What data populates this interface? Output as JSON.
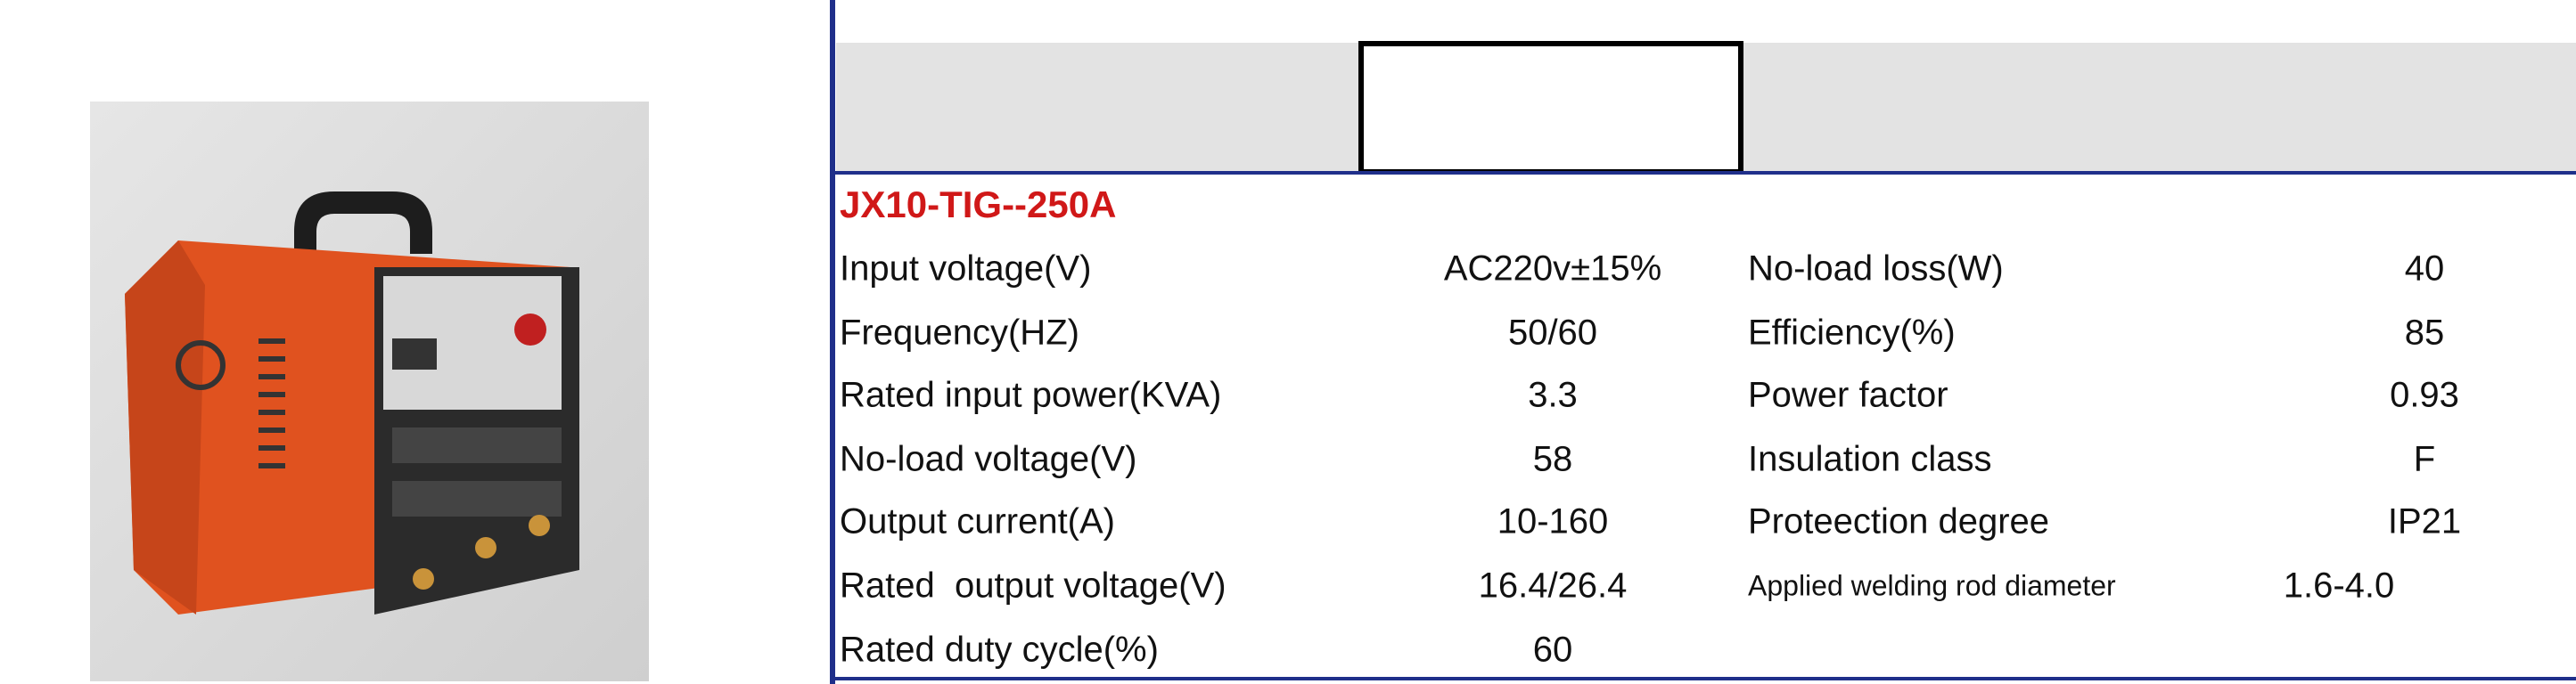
{
  "title": "JX10-TIG--250A",
  "table": {
    "rows": [
      [
        "Input voltage(V)",
        "AC220v±15%",
        "No-load loss(W)",
        "40"
      ],
      [
        "Frequency(HZ)",
        "50/60",
        "Efficiency(%)",
        "85"
      ],
      [
        "Rated input power(KVA)",
        "3.3",
        "Power factor",
        "0.93"
      ],
      [
        "No-load voltage(V)",
        "58",
        "Insulation class",
        "F"
      ],
      [
        "Output current(A)",
        "10-160",
        "Proteection degree",
        "IP21"
      ],
      [
        "Rated  output voltage(V)",
        "16.4/26.4",
        "Applied welding rod diameter",
        "1.6-4.0"
      ],
      [
        "Rated duty cycle(%)",
        "60"
      ]
    ]
  }
}
